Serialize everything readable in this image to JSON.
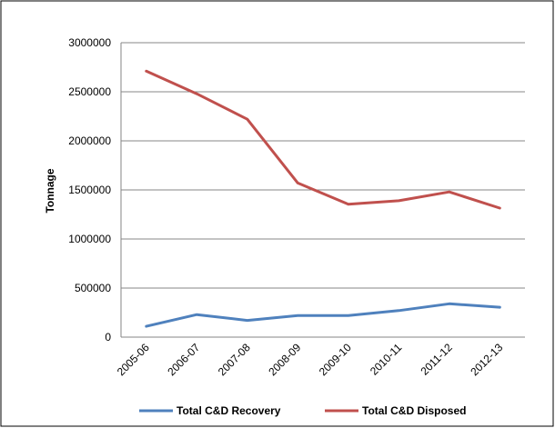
{
  "chart_data": {
    "type": "line",
    "title": "",
    "xlabel": "",
    "ylabel": "Tonnage",
    "ylim": [
      0,
      3000000
    ],
    "yticks": [
      "0",
      "500000",
      "1000000",
      "1500000",
      "2000000",
      "2500000",
      "3000000"
    ],
    "categories": [
      "2005-06",
      "2006-07",
      "2007-08",
      "2008-09",
      "2009-10",
      "2010-11",
      "2011-12",
      "2012-13"
    ],
    "grid": true,
    "legend_position": "bottom",
    "series": [
      {
        "name": "Total C&D Recovery",
        "color": "#4f81bd",
        "values": [
          110000,
          230000,
          170000,
          220000,
          220000,
          270000,
          340000,
          305000
        ]
      },
      {
        "name": "Total C&D Disposed",
        "color": "#c0504d",
        "values": [
          2710000,
          2480000,
          2220000,
          1570000,
          1355000,
          1390000,
          1480000,
          1315000
        ]
      }
    ]
  }
}
